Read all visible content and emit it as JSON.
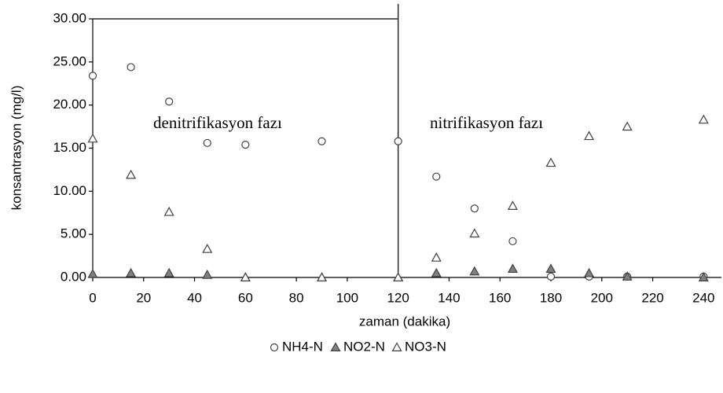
{
  "chart_data": {
    "type": "scatter",
    "x_label": "zaman (dakika)",
    "y_label": "konsantrasyon (mg/l)",
    "annotations": [
      "denitrifikasyon fazı",
      "nitrifikasyon fazı"
    ],
    "vline_x": 120,
    "x": [
      0,
      15,
      30,
      45,
      60,
      90,
      120,
      135,
      150,
      165,
      180,
      195,
      210,
      240
    ],
    "series": [
      {
        "name": "NH4-N",
        "color": "#404040",
        "marker": "circle",
        "filled": false,
        "values": [
          23.4,
          24.4,
          20.4,
          15.6,
          15.4,
          15.8,
          15.8,
          11.7,
          8.0,
          4.2,
          0.1,
          0.1,
          0.1,
          0.1
        ]
      },
      {
        "name": "NO2-N",
        "color": "#404040",
        "marker": "triangle",
        "filled": true,
        "values": [
          0.4,
          0.5,
          0.5,
          0.3,
          0,
          0,
          0,
          0.5,
          0.7,
          1.0,
          1.0,
          0.5,
          0.1,
          0
        ]
      },
      {
        "name": "NO3-N",
        "color": "#404040",
        "marker": "triangle",
        "filled": false,
        "values": [
          16.1,
          11.9,
          7.6,
          3.3,
          0,
          0,
          0,
          2.3,
          5.1,
          8.3,
          13.3,
          16.4,
          17.5,
          18.3
        ]
      }
    ],
    "xlim": [
      0,
      247
    ],
    "xticks": [
      0,
      20,
      40,
      60,
      80,
      100,
      120,
      140,
      160,
      180,
      200,
      220,
      240
    ],
    "ylim": [
      0,
      30
    ],
    "yticks": [
      {
        "value": 0,
        "label": "0.00"
      },
      {
        "value": 5,
        "label": "5.00"
      },
      {
        "value": 10,
        "label": "10.00"
      },
      {
        "value": 15,
        "label": "15.00"
      },
      {
        "value": 20,
        "label": "20.00"
      },
      {
        "value": 25,
        "label": "25.00"
      },
      {
        "value": 30,
        "label": "30.00"
      }
    ],
    "grid": false
  }
}
